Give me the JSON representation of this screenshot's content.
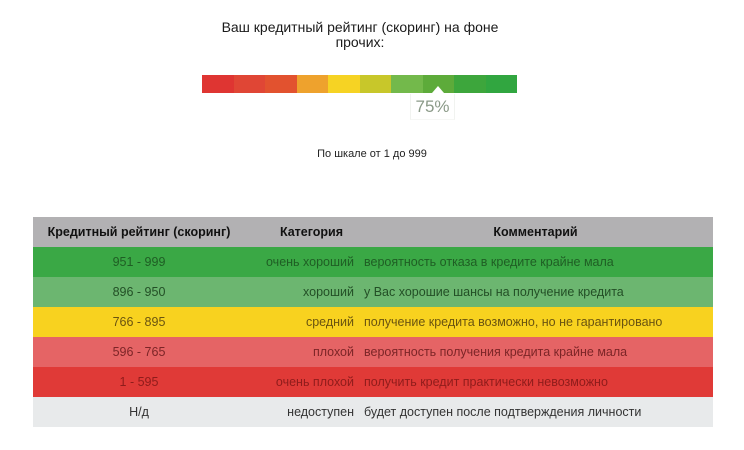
{
  "header": {
    "title": "Ваш кредитный рейтинг (скоринг) на фоне прочих:"
  },
  "scale": {
    "segments": [
      {
        "color": "#df3532"
      },
      {
        "color": "#e04635"
      },
      {
        "color": "#e2522f"
      },
      {
        "color": "#eea22d"
      },
      {
        "color": "#f6d323"
      },
      {
        "color": "#c8c72a"
      },
      {
        "color": "#73b94b"
      },
      {
        "color": "#5dab3a"
      },
      {
        "color": "#3da63c"
      },
      {
        "color": "#31a640"
      }
    ],
    "marker_value": "75%",
    "note": "По шкале от 1 до 999"
  },
  "table": {
    "columns": [
      "Кредитный рейтинг (скоринг)",
      "Категория",
      "Комментарий"
    ],
    "header_bg": "#b2b1b3",
    "rows": [
      {
        "range": "951 - 999",
        "category": "очень хороший",
        "comment": "вероятность отказа в кредите крайне мала",
        "bg": "#3aa845",
        "fg": "#1f5e24"
      },
      {
        "range": "896 - 950",
        "category": "хороший",
        "comment": "у Вас хорошие шансы на получение кредита",
        "bg": "#6cb670",
        "fg": "#234f26"
      },
      {
        "range": "766 - 895",
        "category": "средний",
        "comment": "получение кредита возможно, но не гарантировано",
        "bg": "#f8d21f",
        "fg": "#6a5410"
      },
      {
        "range": "596 - 765",
        "category": "плохой",
        "comment": "вероятность получения кредита крайне мала",
        "bg": "#e56465",
        "fg": "#7c2527"
      },
      {
        "range": "1 - 595",
        "category": "очень плохой",
        "comment": "получить кредит практически невозможно",
        "bg": "#e03a37",
        "fg": "#8f1c1b"
      },
      {
        "range": "Н/д",
        "category": "недоступен",
        "comment": "будет доступен после подтверждения личности",
        "bg": "#e8eaeb",
        "fg": "#333333"
      }
    ]
  }
}
